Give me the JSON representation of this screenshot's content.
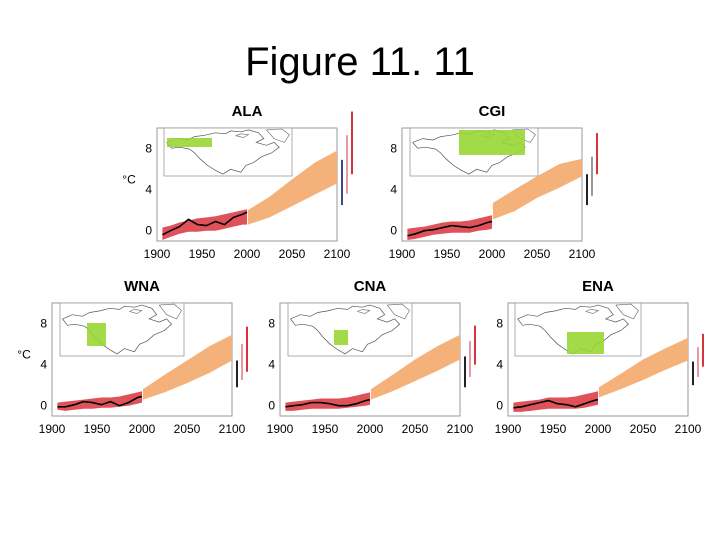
{
  "slide": {
    "title": "Figure 11. 11"
  },
  "colors": {
    "observed_band": "#e0525a",
    "projection_band": "#f4b27a",
    "observed_line": "#000000",
    "region_box": "#99d633",
    "bar_dark": "#222222",
    "bar_navy": "#3b4b8a",
    "bar_red": "#d9323c",
    "bar_pink": "#e89aa0",
    "bar_gray": "#9a9a9a"
  },
  "chart_data": [
    {
      "type": "line",
      "title": "ALA",
      "ylabel": "°C",
      "xlim": [
        1900,
        2100
      ],
      "ylim": [
        -1,
        10
      ],
      "xticks": [
        "1900",
        "1950",
        "2000",
        "2050",
        "2100"
      ],
      "yticks": [
        "0",
        "4",
        "8"
      ],
      "observed": {
        "x": [
          1906,
          1915,
          1925,
          1935,
          1945,
          1955,
          1965,
          1975,
          1985,
          1995,
          2000
        ],
        "y": [
          -0.4,
          0.0,
          0.4,
          1.1,
          0.6,
          0.5,
          0.9,
          0.6,
          1.3,
          1.6,
          1.8
        ],
        "band_low": [
          -0.9,
          -0.6,
          -0.3,
          -0.1,
          -0.1,
          0.0,
          0.0,
          0.2,
          0.4,
          0.6,
          0.6
        ],
        "band_high": [
          0.3,
          0.5,
          0.8,
          1.0,
          1.2,
          1.3,
          1.4,
          1.6,
          1.8,
          2.0,
          2.1
        ]
      },
      "projection": {
        "x": [
          2001,
          2025,
          2050,
          2075,
          2100
        ],
        "low": [
          0.6,
          1.3,
          2.4,
          3.5,
          4.6
        ],
        "high": [
          2.0,
          3.3,
          5.0,
          6.6,
          7.8
        ]
      },
      "bars": [
        {
          "color": "#3b4b8a",
          "low": 2.5,
          "high": 6.9
        },
        {
          "color": "#e89aa0",
          "low": 3.6,
          "high": 9.3
        },
        {
          "color": "#d9323c",
          "low": 5.5,
          "high": 11.6
        }
      ]
    },
    {
      "type": "line",
      "title": "CGI",
      "ylabel": "",
      "xlim": [
        1900,
        2100
      ],
      "ylim": [
        -1,
        10
      ],
      "xticks": [
        "1900",
        "1950",
        "2000",
        "2050",
        "2100"
      ],
      "yticks": [
        "0",
        "4",
        "8"
      ],
      "observed": {
        "x": [
          1906,
          1915,
          1925,
          1935,
          1945,
          1955,
          1965,
          1975,
          1985,
          1995,
          2000
        ],
        "y": [
          -0.5,
          -0.3,
          0.0,
          0.1,
          0.3,
          0.5,
          0.4,
          0.3,
          0.5,
          0.8,
          0.9
        ],
        "band_low": [
          -0.9,
          -0.8,
          -0.6,
          -0.4,
          -0.3,
          -0.2,
          -0.2,
          -0.2,
          0.0,
          0.1,
          0.2
        ],
        "band_high": [
          0.2,
          0.3,
          0.4,
          0.6,
          0.8,
          0.9,
          0.9,
          1.0,
          1.2,
          1.4,
          1.5
        ]
      },
      "projection": {
        "x": [
          2001,
          2025,
          2050,
          2075,
          2100
        ],
        "low": [
          1.1,
          1.9,
          3.2,
          4.2,
          5.3
        ],
        "high": [
          2.7,
          4.0,
          5.3,
          6.5,
          7.0
        ]
      },
      "bars": [
        {
          "color": "#222222",
          "low": 2.5,
          "high": 5.5
        },
        {
          "color": "#9a9a9a",
          "low": 3.4,
          "high": 7.2
        },
        {
          "color": "#d9323c",
          "low": 5.5,
          "high": 9.5
        }
      ]
    },
    {
      "type": "line",
      "title": "WNA",
      "ylabel": "°C",
      "xlim": [
        1900,
        2100
      ],
      "ylim": [
        -1,
        10
      ],
      "xticks": [
        "1900",
        "1950",
        "2000",
        "2050",
        "2100"
      ],
      "yticks": [
        "0",
        "4",
        "8"
      ],
      "observed": {
        "x": [
          1906,
          1915,
          1925,
          1935,
          1945,
          1955,
          1965,
          1975,
          1985,
          1995,
          2000
        ],
        "y": [
          -0.1,
          -0.1,
          0.1,
          0.4,
          0.3,
          0.1,
          0.4,
          0.0,
          0.3,
          0.8,
          0.9
        ],
        "band_low": [
          -0.4,
          -0.5,
          -0.4,
          -0.3,
          -0.3,
          -0.2,
          -0.2,
          -0.1,
          0.0,
          0.2,
          0.3
        ],
        "band_high": [
          0.3,
          0.4,
          0.5,
          0.6,
          0.7,
          0.8,
          0.8,
          0.9,
          1.1,
          1.3,
          1.4
        ]
      },
      "projection": {
        "x": [
          2001,
          2025,
          2050,
          2075,
          2100
        ],
        "low": [
          0.6,
          1.3,
          2.2,
          3.2,
          4.4
        ],
        "high": [
          1.6,
          3.0,
          4.4,
          5.8,
          6.9
        ]
      },
      "bars": [
        {
          "color": "#222222",
          "low": 1.8,
          "high": 4.4
        },
        {
          "color": "#e89aa0",
          "low": 2.5,
          "high": 6.0
        },
        {
          "color": "#d9323c",
          "low": 3.3,
          "high": 7.7
        }
      ]
    },
    {
      "type": "line",
      "title": "CNA",
      "ylabel": "",
      "xlim": [
        1900,
        2100
      ],
      "ylim": [
        -1,
        10
      ],
      "xticks": [
        "1900",
        "1950",
        "2000",
        "2050",
        "2100"
      ],
      "yticks": [
        "0",
        "4",
        "8"
      ],
      "observed": {
        "x": [
          1906,
          1915,
          1925,
          1935,
          1945,
          1955,
          1965,
          1975,
          1985,
          1995,
          2000
        ],
        "y": [
          -0.1,
          0.0,
          0.1,
          0.3,
          0.3,
          0.2,
          0.0,
          0.0,
          0.2,
          0.5,
          0.6
        ],
        "band_low": [
          -0.5,
          -0.5,
          -0.4,
          -0.3,
          -0.3,
          -0.3,
          -0.3,
          -0.2,
          -0.1,
          0.0,
          0.1
        ],
        "band_high": [
          0.3,
          0.4,
          0.5,
          0.6,
          0.7,
          0.7,
          0.7,
          0.8,
          1.0,
          1.2,
          1.3
        ]
      },
      "projection": {
        "x": [
          2001,
          2025,
          2050,
          2075,
          2100
        ],
        "low": [
          0.6,
          1.4,
          2.4,
          3.4,
          4.5
        ],
        "high": [
          1.6,
          3.0,
          4.5,
          5.8,
          6.9
        ]
      },
      "bars": [
        {
          "color": "#222222",
          "low": 1.8,
          "high": 4.8
        },
        {
          "color": "#e89aa0",
          "low": 2.8,
          "high": 6.3
        },
        {
          "color": "#d9323c",
          "low": 4.0,
          "high": 7.8
        }
      ]
    },
    {
      "type": "line",
      "title": "ENA",
      "ylabel": "",
      "xlim": [
        1900,
        2100
      ],
      "ylim": [
        -1,
        10
      ],
      "xticks": [
        "1900",
        "1950",
        "2000",
        "2050",
        "2100"
      ],
      "yticks": [
        "0",
        "4",
        "8"
      ],
      "observed": {
        "x": [
          1906,
          1915,
          1925,
          1935,
          1945,
          1955,
          1965,
          1975,
          1985,
          1995,
          2000
        ],
        "y": [
          -0.2,
          -0.1,
          0.1,
          0.3,
          0.5,
          0.2,
          0.1,
          -0.1,
          0.2,
          0.5,
          0.6
        ],
        "band_low": [
          -0.6,
          -0.6,
          -0.5,
          -0.4,
          -0.3,
          -0.3,
          -0.3,
          -0.3,
          -0.2,
          0.0,
          0.1
        ],
        "band_high": [
          0.3,
          0.4,
          0.5,
          0.6,
          0.8,
          0.8,
          0.8,
          0.9,
          1.1,
          1.3,
          1.4
        ]
      },
      "projection": {
        "x": [
          2001,
          2025,
          2050,
          2075,
          2100
        ],
        "low": [
          0.8,
          1.6,
          2.5,
          3.5,
          4.4
        ],
        "high": [
          1.8,
          3.1,
          4.5,
          5.6,
          6.6
        ]
      },
      "bars": [
        {
          "color": "#222222",
          "low": 2.0,
          "high": 4.3
        },
        {
          "color": "#e89aa0",
          "low": 2.8,
          "high": 5.7
        },
        {
          "color": "#d9323c",
          "low": 3.8,
          "high": 7.0
        }
      ]
    }
  ]
}
